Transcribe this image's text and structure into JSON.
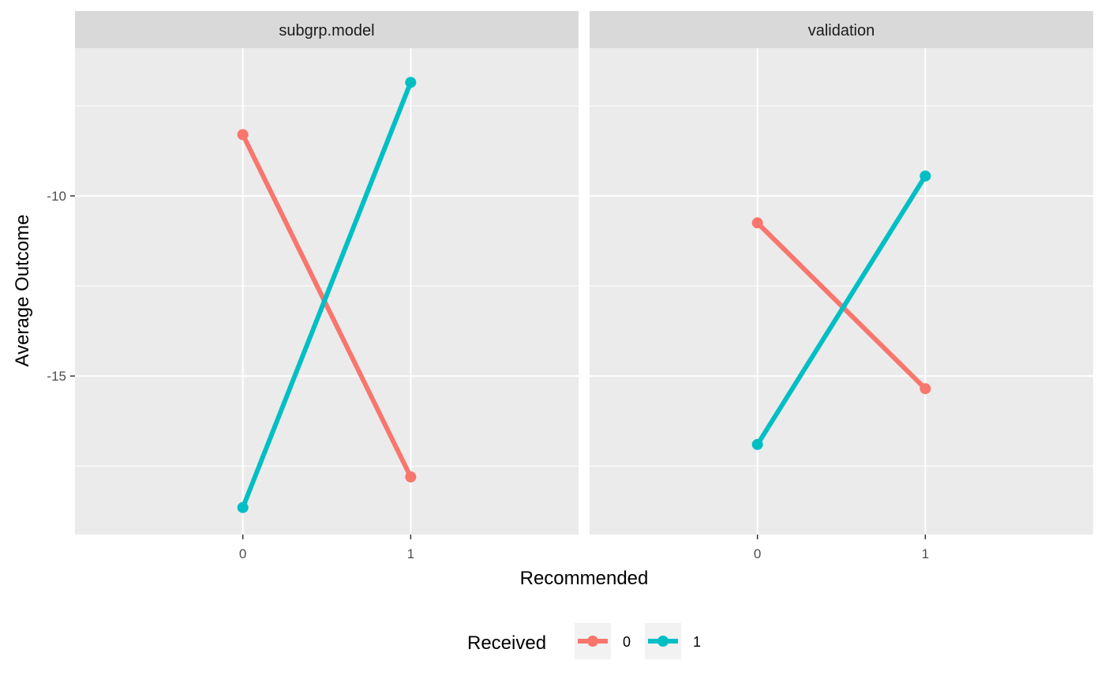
{
  "chart_data": {
    "type": "line",
    "xlabel": "Recommended",
    "ylabel": "Average Outcome",
    "x_categories": [
      "0",
      "1"
    ],
    "y_ticks": [
      -10,
      -15
    ],
    "y_tick_labels": [
      "-10",
      "-15"
    ],
    "ylim": [
      -19.4,
      -5.9
    ],
    "grid": true,
    "legend": {
      "title": "Received",
      "placement": "bottom",
      "entries": [
        "0",
        "1"
      ]
    },
    "colors": {
      "0": "#F8766D",
      "1": "#00BFC4"
    },
    "panels": [
      {
        "label": "subgrp.model",
        "series": [
          {
            "name": "0",
            "values": [
              -8.3,
              -17.8
            ]
          },
          {
            "name": "1",
            "values": [
              -18.65,
              -6.85
            ]
          }
        ]
      },
      {
        "label": "validation",
        "series": [
          {
            "name": "0",
            "values": [
              -10.75,
              -15.35
            ]
          },
          {
            "name": "1",
            "values": [
              -16.9,
              -9.45
            ]
          }
        ]
      }
    ]
  }
}
